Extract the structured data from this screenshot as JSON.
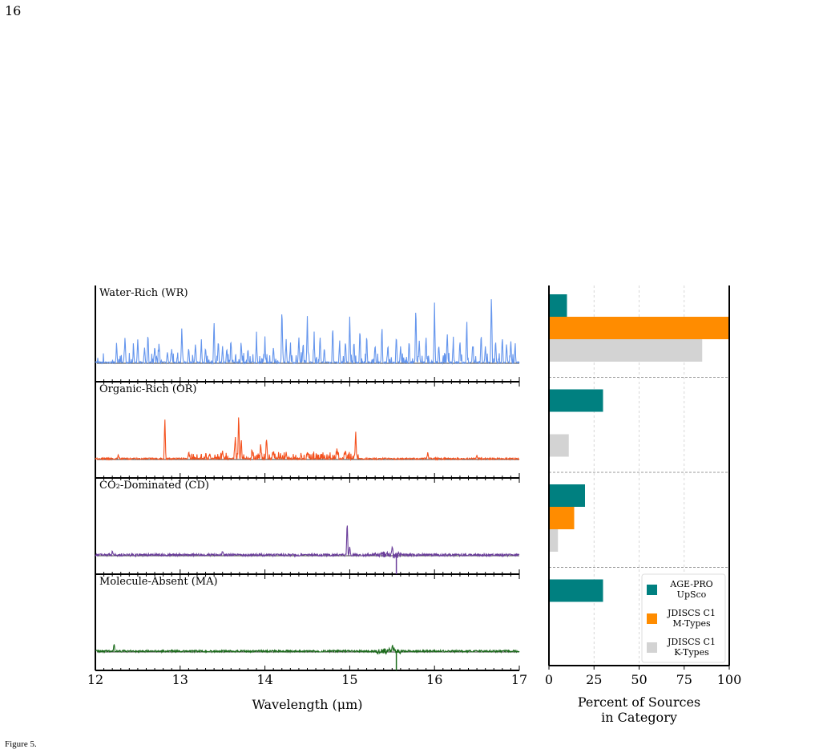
{
  "page": {
    "number": "16",
    "caption_fragment": "Figure 5."
  },
  "chart_data": [
    {
      "type": "line",
      "description_panels": "stacked spectra, one per category, vertical offsets arbitrary (no y axis)",
      "xlabel": "Wavelength (μm)",
      "xlim": [
        12,
        17
      ],
      "xticks": [
        "12",
        "13",
        "14",
        "15",
        "16",
        "17"
      ],
      "panels": [
        {
          "label": "Water-Rich (WR)",
          "color": "#6495ED",
          "peaks": [
            [
              12.25,
              0.25
            ],
            [
              12.35,
              0.35
            ],
            [
              12.45,
              0.15
            ],
            [
              12.5,
              0.3
            ],
            [
              12.58,
              0.2
            ],
            [
              12.62,
              0.4
            ],
            [
              12.7,
              0.22
            ],
            [
              12.75,
              0.25
            ],
            [
              12.85,
              0.15
            ],
            [
              12.9,
              0.18
            ],
            [
              13.02,
              0.45
            ],
            [
              13.1,
              0.2
            ],
            [
              13.18,
              0.25
            ],
            [
              13.25,
              0.3
            ],
            [
              13.3,
              0.2
            ],
            [
              13.4,
              0.55
            ],
            [
              13.45,
              0.3
            ],
            [
              13.5,
              0.22
            ],
            [
              13.55,
              0.2
            ],
            [
              13.6,
              0.28
            ],
            [
              13.72,
              0.25
            ],
            [
              13.8,
              0.2
            ],
            [
              13.9,
              0.3
            ],
            [
              14.0,
              0.25
            ],
            [
              14.1,
              0.2
            ],
            [
              14.2,
              0.75
            ],
            [
              14.25,
              0.3
            ],
            [
              14.3,
              0.2
            ],
            [
              14.4,
              0.35
            ],
            [
              14.45,
              0.25
            ],
            [
              14.5,
              0.6
            ],
            [
              14.58,
              0.3
            ],
            [
              14.65,
              0.35
            ],
            [
              14.7,
              0.2
            ],
            [
              14.8,
              0.5
            ],
            [
              14.88,
              0.25
            ],
            [
              14.95,
              0.3
            ],
            [
              15.0,
              0.6
            ],
            [
              15.05,
              0.3
            ],
            [
              15.12,
              0.45
            ],
            [
              15.2,
              0.3
            ],
            [
              15.3,
              0.25
            ],
            [
              15.38,
              0.4
            ],
            [
              15.45,
              0.22
            ],
            [
              15.55,
              0.35
            ],
            [
              15.6,
              0.22
            ],
            [
              15.7,
              0.3
            ],
            [
              15.78,
              0.75
            ],
            [
              15.82,
              0.3
            ],
            [
              15.9,
              0.35
            ],
            [
              16.0,
              0.7
            ],
            [
              16.05,
              0.25
            ],
            [
              16.15,
              0.4
            ],
            [
              16.22,
              0.25
            ],
            [
              16.3,
              0.3
            ],
            [
              16.38,
              0.5
            ],
            [
              16.45,
              0.25
            ],
            [
              16.55,
              0.4
            ],
            [
              16.6,
              0.22
            ],
            [
              16.67,
              0.85
            ],
            [
              16.72,
              0.3
            ],
            [
              16.8,
              0.35
            ],
            [
              16.85,
              0.25
            ],
            [
              16.9,
              0.3
            ],
            [
              16.95,
              0.22
            ]
          ]
        },
        {
          "label": "Organic-Rich (OR)",
          "color": "#F4511E",
          "peaks": [
            [
              12.27,
              0.05
            ],
            [
              12.82,
              0.55
            ],
            [
              13.1,
              0.08
            ],
            [
              13.35,
              0.08
            ],
            [
              13.5,
              0.1
            ],
            [
              13.65,
              0.3
            ],
            [
              13.69,
              0.6
            ],
            [
              13.72,
              0.25
            ],
            [
              13.85,
              0.12
            ],
            [
              13.95,
              0.2
            ],
            [
              14.02,
              0.28
            ],
            [
              14.1,
              0.1
            ],
            [
              14.25,
              0.08
            ],
            [
              14.5,
              0.07
            ],
            [
              14.85,
              0.15
            ],
            [
              14.95,
              0.12
            ],
            [
              15.07,
              0.37
            ],
            [
              15.92,
              0.08
            ],
            [
              16.5,
              0.05
            ]
          ]
        },
        {
          "label": "CO₂-Dominated (CD)",
          "color": "#6A3D9A",
          "peaks": [
            [
              12.2,
              0.05
            ],
            [
              13.5,
              0.05
            ],
            [
              14.97,
              0.45
            ],
            [
              15.0,
              0.1
            ],
            [
              15.5,
              0.12
            ]
          ]
        },
        {
          "label": "Molecule-Absent (MA)",
          "color": "#1B6B1B",
          "peaks": [
            [
              12.22,
              0.1
            ],
            [
              15.5,
              0.07
            ]
          ]
        }
      ]
    },
    {
      "type": "bar",
      "orientation": "horizontal",
      "xlabel": "Percent of Sources in Category",
      "xlabel_lines": [
        "Percent of Sources",
        "in Category"
      ],
      "xlim": [
        0,
        100
      ],
      "xticks": [
        "0",
        "25",
        "50",
        "75",
        "100"
      ],
      "grid": "vertical dashed",
      "legend_position": "bottom-right",
      "categories": [
        "Water-Rich (WR)",
        "Organic-Rich (OR)",
        "CO₂-Dominated (CD)",
        "Molecule-Absent (MA)"
      ],
      "series": [
        {
          "name": "AGE-PRO UpSco",
          "legend_lines": [
            "AGE-PRO",
            "UpSco"
          ],
          "color": "#008080",
          "values": [
            10,
            30,
            20,
            30
          ]
        },
        {
          "name": "JDISCS C1 M-Types",
          "legend_lines": [
            "JDISCS C1",
            "M-Types"
          ],
          "color": "#FF8C00",
          "values": [
            100,
            0,
            14,
            0
          ]
        },
        {
          "name": "JDISCS C1 K-Types",
          "legend_lines": [
            "JDISCS C1",
            "K-Types"
          ],
          "color": "#D3D3D3",
          "values": [
            85,
            11,
            5,
            0
          ]
        }
      ]
    }
  ]
}
